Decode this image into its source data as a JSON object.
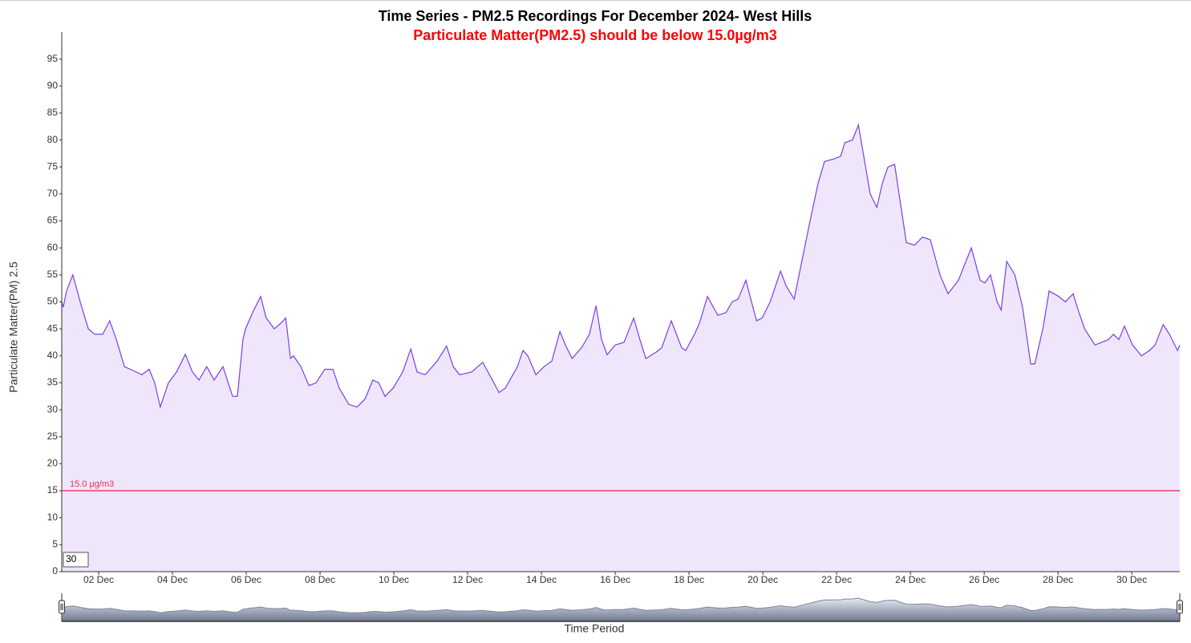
{
  "chart_data": {
    "type": "area",
    "title": "Time Series - PM2.5 Recordings For December 2024- West Hills",
    "subtitle": "Particulate Matter(PM2.5) should be below 15.0µg/m3",
    "y_label": "Particulate Matter(PM) 2.5",
    "x_label": "Time Period",
    "zoom_input": "30",
    "threshold": {
      "value": 15,
      "label": "15.0 µg/m3",
      "color": "#e8334a"
    },
    "xlim": [
      1,
      31.3
    ],
    "xticks": [
      {
        "value": 2,
        "label": "02 Dec"
      },
      {
        "value": 4,
        "label": "04 Dec"
      },
      {
        "value": 6,
        "label": "06 Dec"
      },
      {
        "value": 8,
        "label": "08 Dec"
      },
      {
        "value": 10,
        "label": "10 Dec"
      },
      {
        "value": 12,
        "label": "12 Dec"
      },
      {
        "value": 14,
        "label": "14 Dec"
      },
      {
        "value": 16,
        "label": "16 Dec"
      },
      {
        "value": 18,
        "label": "18 Dec"
      },
      {
        "value": 20,
        "label": "20 Dec"
      },
      {
        "value": 22,
        "label": "22 Dec"
      },
      {
        "value": 24,
        "label": "24 Dec"
      },
      {
        "value": 26,
        "label": "26 Dec"
      },
      {
        "value": 28,
        "label": "28 Dec"
      },
      {
        "value": 30,
        "label": "30 Dec"
      }
    ],
    "ylim": [
      0,
      100
    ],
    "yticks": [
      0,
      5,
      10,
      15,
      20,
      25,
      30,
      35,
      40,
      45,
      50,
      55,
      60,
      65,
      70,
      75,
      80,
      85,
      90,
      95
    ],
    "x": [
      1.0,
      1.04,
      1.13,
      1.3,
      1.5,
      1.72,
      1.89,
      2.11,
      2.3,
      2.48,
      2.7,
      3.02,
      3.17,
      3.37,
      3.52,
      3.67,
      3.89,
      4.11,
      4.35,
      4.54,
      4.72,
      4.93,
      5.13,
      5.37,
      5.63,
      5.76,
      5.91,
      5.98,
      6.17,
      6.39,
      6.54,
      6.76,
      6.93,
      7.07,
      7.2,
      7.28,
      7.48,
      7.7,
      7.89,
      8.13,
      8.35,
      8.52,
      8.78,
      9.0,
      9.22,
      9.43,
      9.59,
      9.76,
      9.98,
      10.24,
      10.46,
      10.63,
      10.85,
      11.17,
      11.43,
      11.61,
      11.78,
      12.11,
      12.41,
      12.63,
      12.85,
      13.02,
      13.35,
      13.5,
      13.63,
      13.85,
      14.07,
      14.28,
      14.5,
      14.65,
      14.83,
      15.09,
      15.3,
      15.48,
      15.63,
      15.78,
      16.0,
      16.24,
      16.5,
      16.67,
      16.83,
      17.11,
      17.26,
      17.52,
      17.8,
      17.91,
      18.15,
      18.28,
      18.5,
      18.78,
      19.0,
      19.17,
      19.33,
      19.54,
      19.83,
      19.98,
      20.2,
      20.48,
      20.63,
      20.85,
      21.07,
      21.28,
      21.5,
      21.67,
      21.93,
      22.11,
      22.22,
      22.43,
      22.59,
      22.76,
      22.91,
      23.09,
      23.24,
      23.39,
      23.57,
      23.89,
      24.11,
      24.33,
      24.54,
      24.8,
      25.02,
      25.3,
      25.65,
      25.89,
      26.02,
      26.17,
      26.35,
      26.46,
      26.61,
      26.83,
      27.04,
      27.26,
      27.37,
      27.59,
      27.76,
      28.02,
      28.2,
      28.41,
      28.57,
      28.72,
      29.0,
      29.37,
      29.5,
      29.65,
      29.8,
      30.02,
      30.26,
      30.48,
      30.63,
      30.85,
      31.02,
      31.24,
      31.3
    ],
    "series": [
      {
        "name": "PM2.5",
        "color": "#7b3fe4",
        "fill": "#efe6fc",
        "values": [
          50,
          49,
          52,
          55,
          50,
          45,
          44,
          44,
          46.5,
          43,
          38,
          37,
          36.5,
          37.5,
          35,
          30.5,
          35,
          37,
          40.3,
          37,
          35.5,
          38,
          35.5,
          38,
          32.5,
          32.5,
          43,
          45,
          48,
          51,
          47,
          45,
          46,
          47,
          39.5,
          40,
          38,
          34.5,
          35,
          37.5,
          37.5,
          34,
          31,
          30.5,
          32,
          35.5,
          35,
          32.5,
          34,
          37,
          41.3,
          37,
          36.5,
          39,
          41.8,
          38,
          36.5,
          37,
          38.8,
          36,
          33.2,
          34,
          38,
          41,
          40,
          36.5,
          38,
          39,
          44.5,
          42,
          39.5,
          41.5,
          44,
          49.3,
          43,
          40.2,
          42,
          42.5,
          47,
          43,
          39.5,
          40.7,
          41.5,
          46.5,
          41.5,
          41,
          44,
          46,
          51,
          47.5,
          48,
          50,
          50.5,
          54,
          46.5,
          47,
          50,
          55.7,
          53,
          50.5,
          58,
          65,
          72,
          76,
          76.5,
          77,
          79.5,
          80,
          82.8,
          76,
          70,
          67.5,
          72,
          75,
          75.5,
          61,
          60.5,
          62,
          61.5,
          55,
          51.5,
          54,
          60,
          54,
          53.5,
          55,
          50,
          48.5,
          57.5,
          55,
          49,
          38.5,
          38.5,
          45,
          52,
          51,
          50,
          51.5,
          48,
          45,
          42,
          43,
          44,
          43,
          45.5,
          42,
          40,
          41,
          42,
          45.8,
          44,
          41,
          42
        ]
      }
    ]
  }
}
